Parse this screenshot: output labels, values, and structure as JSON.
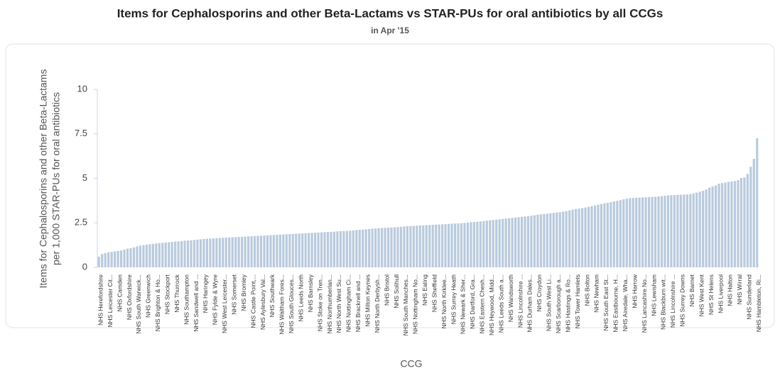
{
  "chart_data": {
    "type": "bar",
    "title": "Items for Cephalosporins and other Beta-Lactams vs STAR-PUs for oral antibiotics by all CCGs",
    "subtitle": "in Apr '15",
    "xlabel": "CCG",
    "ylabel": [
      "Items for Cephalosporins and other Beta-Lactams",
      "per 1,000 STAR-PUs for oral antibiotics"
    ],
    "color": "#b9cadd",
    "grid": false,
    "ylim": [
      0,
      10
    ],
    "yticks": [
      0,
      2.5,
      5,
      7.5,
      10
    ],
    "categories": [
      "NHS Herefordshire",
      null,
      null,
      "NHS Leicester Cit...",
      null,
      null,
      "NHS Camden",
      null,
      null,
      "NHS Oxfordshire",
      null,
      null,
      "NHS South Warwick...",
      null,
      null,
      "NHS Greenwich",
      null,
      null,
      "NHS Brighton & Ho...",
      null,
      null,
      "NHS Stockport",
      null,
      null,
      "NHS Thurrock",
      null,
      null,
      "NHS Southampton",
      null,
      null,
      "NHS Sandwell and ...",
      null,
      null,
      "NHS Haringey",
      null,
      null,
      "NHS Fylde & Wyre",
      null,
      null,
      "NHS West Leicester...",
      null,
      null,
      "NHS Somerset",
      null,
      null,
      "NHS Bromley",
      null,
      null,
      "NHS Castle Point,...",
      null,
      null,
      "NHS Aylesbury Val...",
      null,
      null,
      "NHS Southwark",
      null,
      null,
      "NHS Waltham Fores...",
      null,
      null,
      "NHS South Glouces...",
      null,
      null,
      "NHS Leeds North",
      null,
      null,
      "NHS Barnsley",
      null,
      null,
      "NHS Stoke on Tren...",
      null,
      null,
      "NHS Northumberlan...",
      null,
      null,
      "NHS North West Su...",
      null,
      null,
      "NHS Nottingham Ci...",
      null,
      null,
      "NHS Bracknell and ...",
      null,
      null,
      "NHS Milton Keynes",
      null,
      null,
      "NHS North Derbysh...",
      null,
      null,
      "NHS Bristol",
      null,
      null,
      "NHS Solihull",
      null,
      null,
      "NHS South Manches...",
      null,
      null,
      "NHS Nottingham No...",
      null,
      null,
      "NHS Ealing",
      null,
      null,
      "NHS Sheffield",
      null,
      null,
      "NHS North Kirklee...",
      null,
      null,
      "NHS Surrey Heath",
      null,
      null,
      "NHS Newark & Sher...",
      null,
      null,
      "NHS Dartford, Gra...",
      null,
      null,
      "NHS Eastern Chesh...",
      null,
      null,
      "NHS Heywood, Midd...",
      null,
      null,
      "NHS Leeds South a...",
      null,
      null,
      "NHS Wandsworth",
      null,
      null,
      "NHS Lincolnshire ...",
      null,
      null,
      "NHS Durham Dales...",
      null,
      null,
      "NHS Croydon",
      null,
      null,
      "NHS South West Li...",
      null,
      null,
      "NHS Scarborough a...",
      null,
      null,
      "NHS Hastings & Ro...",
      null,
      null,
      "NHS Tower Hamlets",
      null,
      null,
      "NHS Bolton",
      null,
      null,
      "NHS Newham",
      null,
      null,
      "NHS South East St...",
      null,
      null,
      "NHS Eastbourne, H...",
      null,
      null,
      "NHS Airedale, Wha...",
      null,
      null,
      "NHS Harrow",
      null,
      null,
      "NHS Lancashire No...",
      null,
      null,
      "NHS Lewisham",
      null,
      null,
      "NHS Blackburn wit...",
      null,
      null,
      "NHS Lincolnshire ...",
      null,
      null,
      "NHS Surrey Downs",
      null,
      null,
      "NHS Barnet",
      null,
      null,
      "NHS West Kent",
      null,
      null,
      "NHS St Helens",
      null,
      null,
      "NHS Liverpool",
      null,
      null,
      "NHS Halton",
      null,
      null,
      "NHS Wirral",
      null,
      null,
      "NHS Sunderland",
      null,
      null,
      "NHS Hambleton, Ri..."
    ],
    "values": [
      0.6,
      0.75,
      0.8,
      0.85,
      0.87,
      0.9,
      0.92,
      0.95,
      1.0,
      1.05,
      1.08,
      1.12,
      1.18,
      1.22,
      1.25,
      1.27,
      1.3,
      1.32,
      1.34,
      1.36,
      1.38,
      1.4,
      1.41,
      1.43,
      1.45,
      1.46,
      1.48,
      1.5,
      1.51,
      1.52,
      1.54,
      1.56,
      1.58,
      1.6,
      1.61,
      1.62,
      1.63,
      1.64,
      1.65,
      1.66,
      1.67,
      1.68,
      1.69,
      1.7,
      1.71,
      1.72,
      1.73,
      1.74,
      1.75,
      1.76,
      1.77,
      1.78,
      1.79,
      1.8,
      1.81,
      1.82,
      1.83,
      1.84,
      1.85,
      1.86,
      1.87,
      1.88,
      1.89,
      1.9,
      1.91,
      1.92,
      1.93,
      1.94,
      1.95,
      1.96,
      1.97,
      1.98,
      1.99,
      2.0,
      2.01,
      2.02,
      2.03,
      2.04,
      2.05,
      2.06,
      2.08,
      2.1,
      2.11,
      2.12,
      2.14,
      2.16,
      2.17,
      2.18,
      2.2,
      2.21,
      2.22,
      2.23,
      2.24,
      2.25,
      2.26,
      2.28,
      2.3,
      2.31,
      2.32,
      2.33,
      2.34,
      2.35,
      2.36,
      2.37,
      2.38,
      2.39,
      2.4,
      2.41,
      2.42,
      2.43,
      2.44,
      2.45,
      2.46,
      2.47,
      2.48,
      2.5,
      2.52,
      2.54,
      2.55,
      2.56,
      2.58,
      2.6,
      2.62,
      2.64,
      2.66,
      2.68,
      2.7,
      2.72,
      2.74,
      2.76,
      2.78,
      2.8,
      2.82,
      2.84,
      2.86,
      2.88,
      2.9,
      2.93,
      2.96,
      2.98,
      3.0,
      3.02,
      3.04,
      3.06,
      3.08,
      3.1,
      3.13,
      3.16,
      3.2,
      3.24,
      3.28,
      3.3,
      3.33,
      3.36,
      3.4,
      3.44,
      3.48,
      3.52,
      3.56,
      3.6,
      3.63,
      3.66,
      3.7,
      3.74,
      3.78,
      3.82,
      3.86,
      3.88,
      3.9,
      3.91,
      3.92,
      3.93,
      3.94,
      3.95,
      3.96,
      3.97,
      3.98,
      4.0,
      4.02,
      4.04,
      4.05,
      4.06,
      4.07,
      4.08,
      4.09,
      4.1,
      4.12,
      4.15,
      4.2,
      4.25,
      4.3,
      4.38,
      4.48,
      4.55,
      4.6,
      4.7,
      4.73,
      4.76,
      4.8,
      4.82,
      4.85,
      4.9,
      5.02,
      5.05,
      5.25,
      5.65,
      6.1,
      7.25
    ]
  }
}
